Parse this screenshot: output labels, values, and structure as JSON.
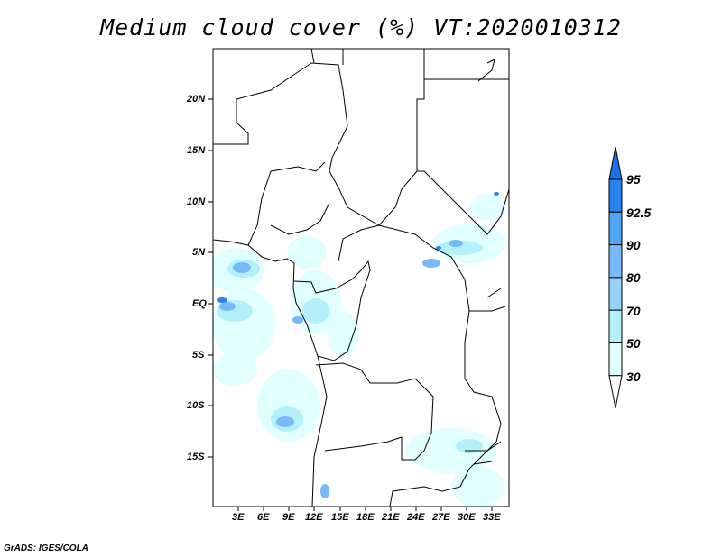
{
  "title": "Medium cloud cover (%) VT:2020010312",
  "lat_labels": [
    "20N",
    "15N",
    "10N",
    "5N",
    "EQ",
    "5S",
    "10S",
    "15S"
  ],
  "lon_labels": [
    "3E",
    "6E",
    "9E",
    "12E",
    "15E",
    "18E",
    "21E",
    "24E",
    "27E",
    "30E",
    "33E"
  ],
  "colorbar": {
    "labels": [
      "95",
      "92.5",
      "90",
      "80",
      "70",
      "50",
      "30"
    ],
    "colors": [
      "#1e6eeb",
      "#2882f0",
      "#50a5f5",
      "#78b9fa",
      "#96d2fa",
      "#b4f0fa",
      "#e1ffff"
    ]
  },
  "footer": "GrADS: IGES/COLA"
}
